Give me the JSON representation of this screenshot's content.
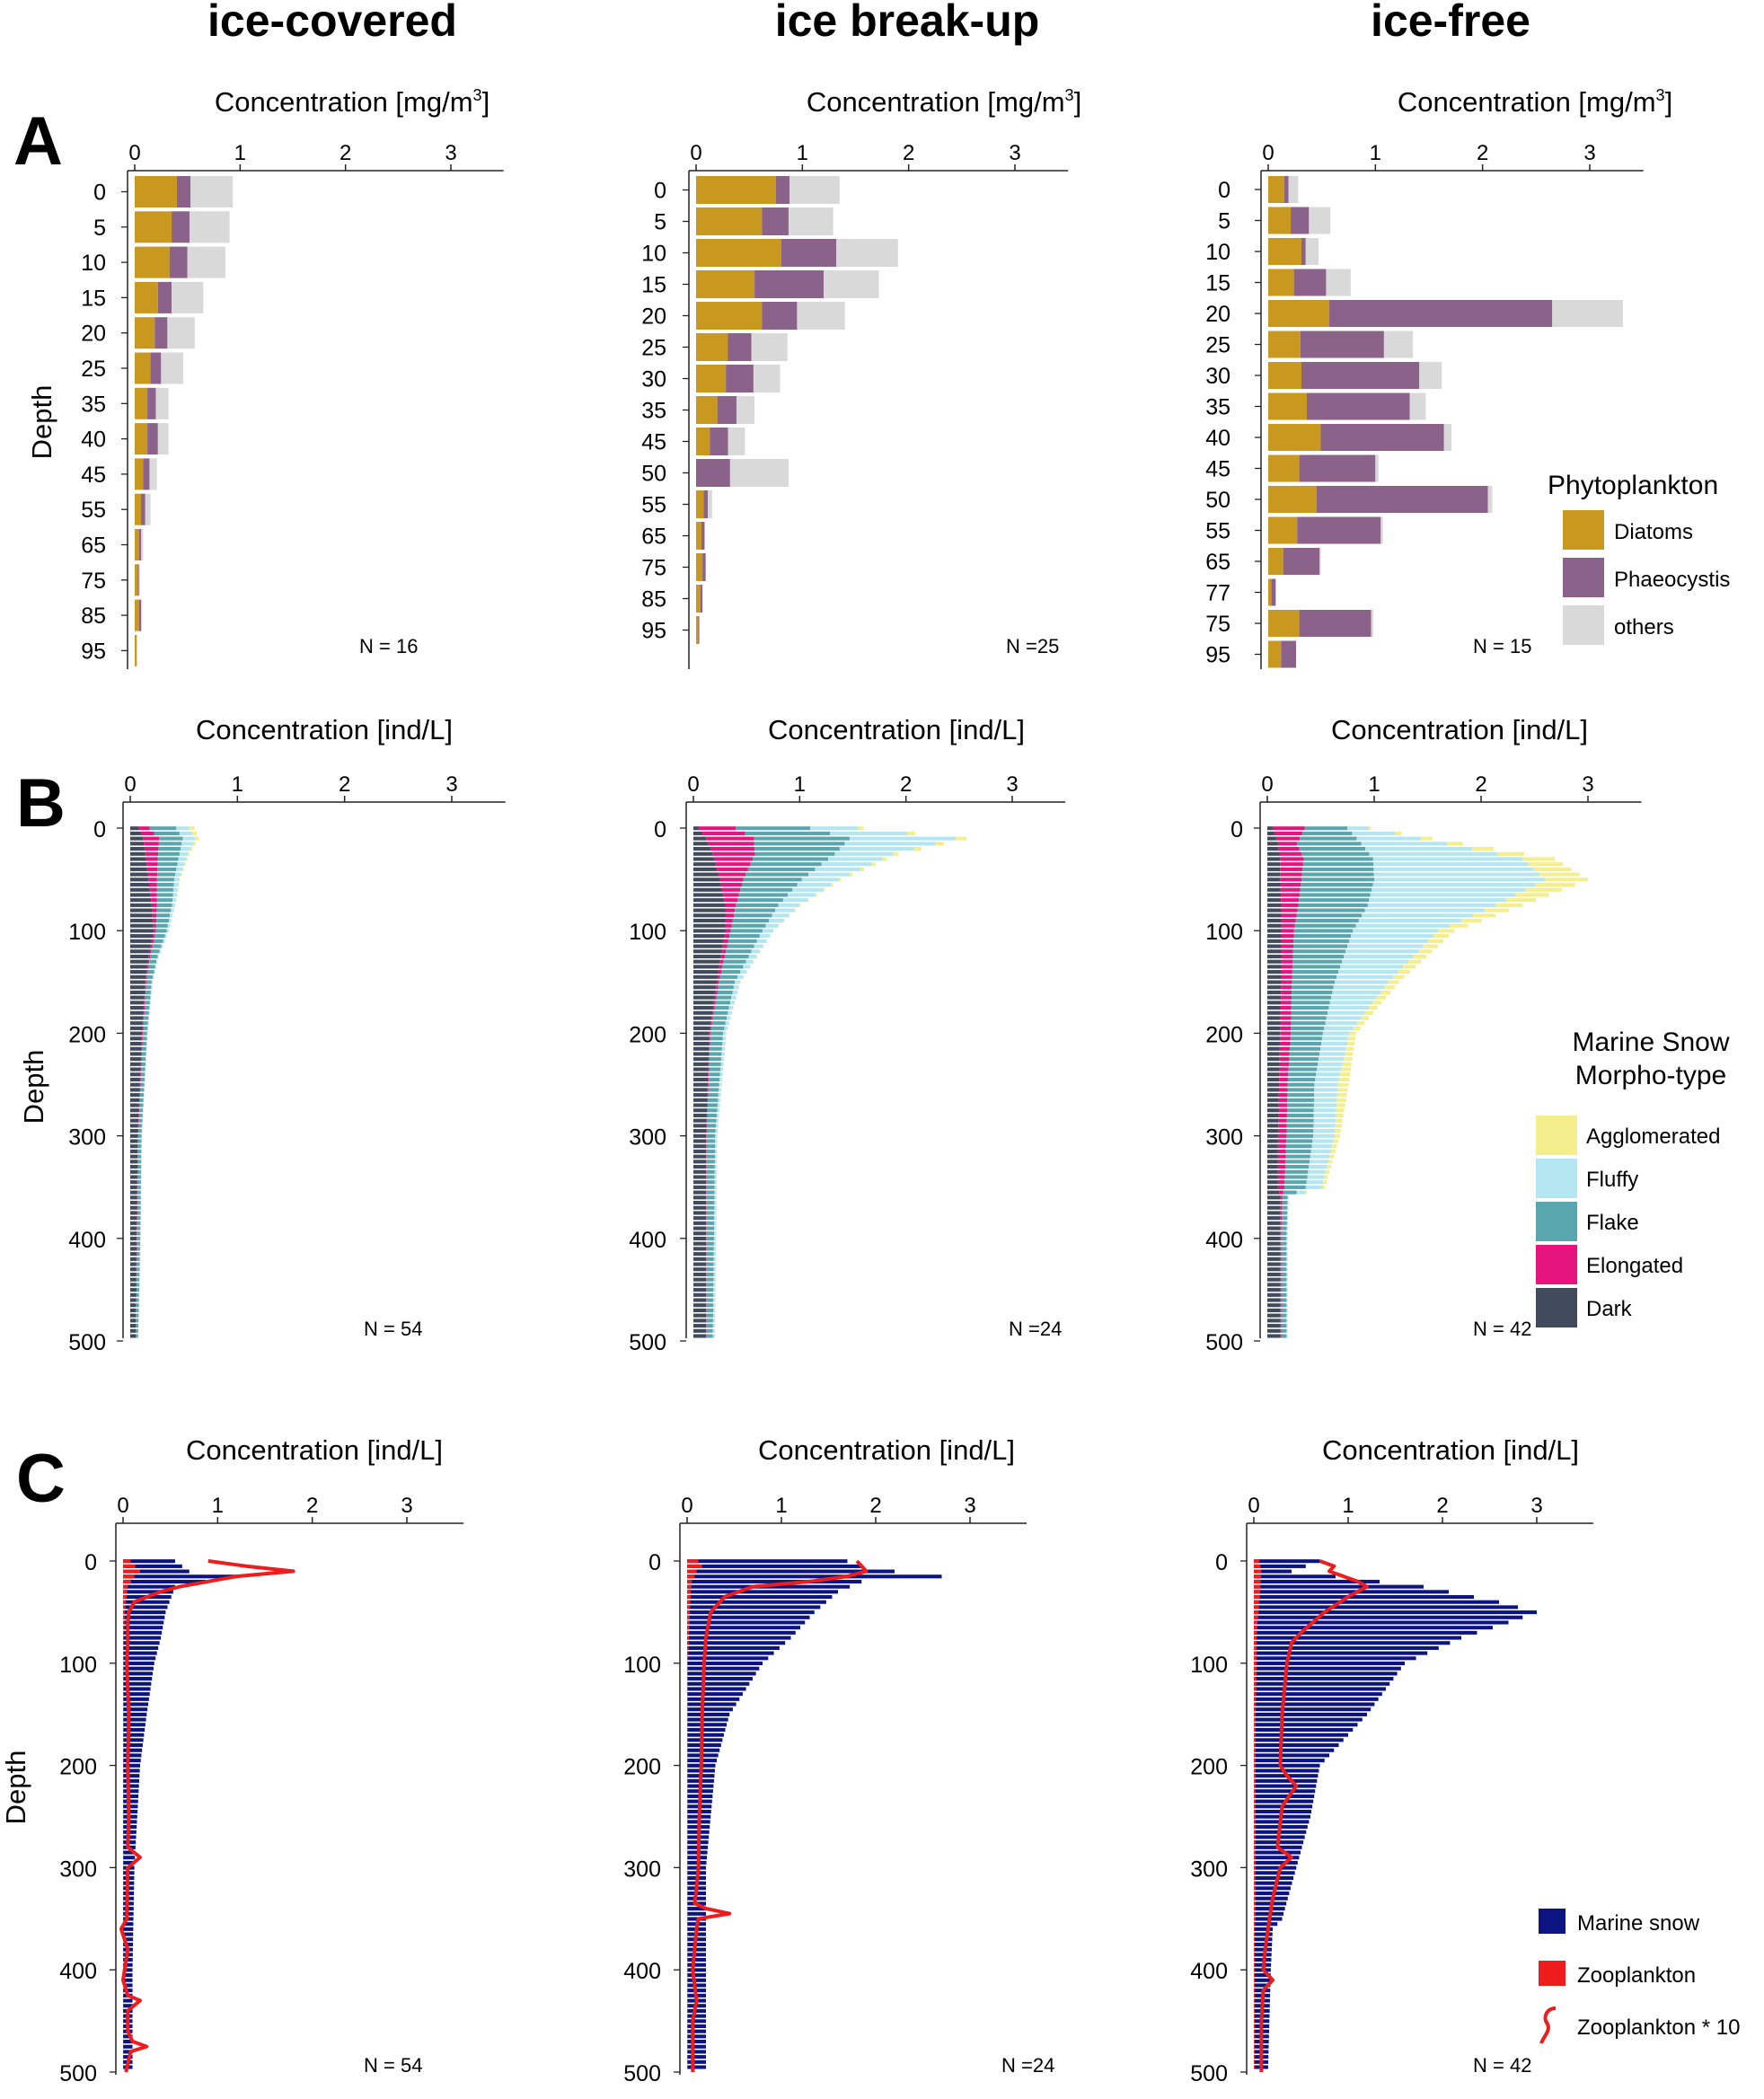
{
  "titles": {
    "col1": "ice-covered",
    "col2": "ice break-up",
    "col3": "ice-free",
    "rowA": "A",
    "rowB": "B",
    "rowC": "C",
    "depth": "Depth",
    "concA": "Concentration [mg/m",
    "concA_sup": "3",
    "concA_end": "]",
    "concBC": "Concentration [ind/L]"
  },
  "legends": {
    "phyto": {
      "title": "Phytoplankton",
      "items": [
        {
          "label": "Diatoms",
          "color": "#C9981F"
        },
        {
          "label": "Phaeocystis",
          "color": "#8B6289"
        },
        {
          "label": "others",
          "color": "#D9D9D9"
        }
      ]
    },
    "snow": {
      "title1": "Marine Snow",
      "title2": "Morpho-type",
      "items": [
        {
          "label": "Agglomerated",
          "color": "#F4EE8C"
        },
        {
          "label": "Fluffy",
          "color": "#B3E6F0"
        },
        {
          "label": "Flake",
          "color": "#5AA6AE"
        },
        {
          "label": "Elongated",
          "color": "#E6147E"
        },
        {
          "label": "Dark",
          "color": "#414B5B"
        }
      ]
    },
    "zoo": {
      "items": [
        {
          "label": "Marine snow",
          "color": "#0B1480"
        },
        {
          "label": "Zooplankton",
          "color": "#EE1C1C"
        },
        {
          "label": "Zooplankton * 10",
          "color": "#EE1C1C"
        }
      ]
    }
  },
  "chart_data": [
    {
      "id": "A1",
      "type": "bar",
      "orientation": "horizontal",
      "stacked": true,
      "title": "Concentration [mg/m3]",
      "ylabel": "Depth",
      "xlim": [
        0,
        3.5
      ],
      "xticks": [
        0,
        1,
        2,
        3
      ],
      "n_label": "N = 16",
      "categories": [
        "0",
        "5",
        "10",
        "15",
        "20",
        "25",
        "35",
        "40",
        "45",
        "55",
        "65",
        "75",
        "85",
        "95"
      ],
      "series": [
        {
          "name": "Diatoms",
          "values": [
            0.4,
            0.35,
            0.33,
            0.22,
            0.19,
            0.15,
            0.12,
            0.12,
            0.08,
            0.06,
            0.04,
            0.03,
            0.04,
            0.02
          ]
        },
        {
          "name": "Phaeocystis",
          "values": [
            0.13,
            0.17,
            0.17,
            0.13,
            0.12,
            0.1,
            0.08,
            0.1,
            0.06,
            0.04,
            0.02,
            0.01,
            0.02,
            0.0
          ]
        },
        {
          "name": "others",
          "values": [
            0.4,
            0.38,
            0.36,
            0.3,
            0.26,
            0.21,
            0.12,
            0.1,
            0.07,
            0.05,
            0.02,
            0.01,
            0.01,
            0.0
          ]
        }
      ]
    },
    {
      "id": "A2",
      "type": "bar",
      "orientation": "horizontal",
      "stacked": true,
      "title": "Concentration [mg/m3]",
      "ylabel": "",
      "xlim": [
        0,
        3.5
      ],
      "xticks": [
        0,
        1,
        2,
        3
      ],
      "n_label": "N =25",
      "categories": [
        "0",
        "5",
        "10",
        "15",
        "20",
        "25",
        "30",
        "35",
        "45",
        "50",
        "55",
        "65",
        "75",
        "85",
        "95"
      ],
      "series": [
        {
          "name": "Diatoms",
          "values": [
            0.75,
            0.62,
            0.8,
            0.55,
            0.62,
            0.3,
            0.28,
            0.2,
            0.13,
            0.0,
            0.07,
            0.05,
            0.06,
            0.04,
            0.02
          ]
        },
        {
          "name": "Phaeocystis",
          "values": [
            0.13,
            0.25,
            0.52,
            0.65,
            0.33,
            0.22,
            0.26,
            0.18,
            0.17,
            0.32,
            0.04,
            0.03,
            0.03,
            0.02,
            0.01
          ]
        },
        {
          "name": "others",
          "values": [
            0.47,
            0.42,
            0.58,
            0.52,
            0.45,
            0.34,
            0.25,
            0.17,
            0.16,
            0.55,
            0.04,
            0.0,
            0.0,
            0.0,
            0.0
          ]
        }
      ]
    },
    {
      "id": "A3",
      "type": "bar",
      "orientation": "horizontal",
      "stacked": true,
      "title": "Concentration [mg/m3]",
      "ylabel": "",
      "xlim": [
        0,
        3.5
      ],
      "xticks": [
        0,
        1,
        2,
        3
      ],
      "n_label": "N = 15",
      "categories": [
        "0",
        "5",
        "10",
        "15",
        "20",
        "25",
        "30",
        "35",
        "40",
        "45",
        "50",
        "55",
        "65",
        "77",
        "75",
        "95"
      ],
      "series": [
        {
          "name": "Diatoms",
          "values": [
            0.15,
            0.21,
            0.31,
            0.24,
            0.57,
            0.3,
            0.31,
            0.36,
            0.49,
            0.29,
            0.45,
            0.27,
            0.14,
            0.03,
            0.29,
            0.12
          ]
        },
        {
          "name": "Phaeocystis",
          "values": [
            0.04,
            0.17,
            0.04,
            0.3,
            2.08,
            0.78,
            1.1,
            0.96,
            1.15,
            0.71,
            1.6,
            0.78,
            0.34,
            0.04,
            0.67,
            0.14
          ]
        },
        {
          "name": "others",
          "values": [
            0.09,
            0.2,
            0.12,
            0.23,
            0.66,
            0.27,
            0.21,
            0.15,
            0.07,
            0.03,
            0.04,
            0.02,
            0.01,
            0.0,
            0.02,
            0.0
          ]
        }
      ]
    },
    {
      "id": "B1",
      "type": "bar",
      "orientation": "horizontal",
      "stacked": true,
      "title": "Concentration [ind/L]",
      "ylabel": "Depth",
      "xlim": [
        0,
        3.5
      ],
      "xticks": [
        0,
        1,
        2,
        3
      ],
      "yticks": [
        0,
        100,
        200,
        300,
        400,
        500
      ],
      "ylim": [
        0,
        500
      ],
      "bin_depth": 5,
      "n_label": "N = 54",
      "profile": {
        "depths": [
          0,
          10,
          25,
          50,
          75,
          100,
          125,
          150,
          200,
          300,
          400,
          500
        ],
        "Dark": [
          0.08,
          0.12,
          0.14,
          0.17,
          0.2,
          0.22,
          0.17,
          0.14,
          0.11,
          0.07,
          0.06,
          0.05
        ],
        "Elongated": [
          0.1,
          0.15,
          0.12,
          0.08,
          0.05,
          0.02,
          0.015,
          0.01,
          0.008,
          0.005,
          0.004,
          0.003
        ],
        "Flake": [
          0.25,
          0.22,
          0.2,
          0.16,
          0.14,
          0.1,
          0.07,
          0.05,
          0.04,
          0.03,
          0.03,
          0.02
        ],
        "Fluffy": [
          0.12,
          0.12,
          0.08,
          0.05,
          0.03,
          0.02,
          0.01,
          0.01,
          0.005,
          0.004,
          0.003,
          0.003
        ],
        "Agglomerated": [
          0.05,
          0.03,
          0.01,
          0.005,
          0.003,
          0.002,
          0.002,
          0.001,
          0.001,
          0.001,
          0.001,
          0.001
        ]
      }
    },
    {
      "id": "B2",
      "type": "bar",
      "orientation": "horizontal",
      "stacked": true,
      "title": "Concentration [ind/L]",
      "ylabel": "",
      "xlim": [
        0,
        3.5
      ],
      "xticks": [
        0,
        1,
        2,
        3
      ],
      "yticks": [
        0,
        100,
        200,
        300,
        400,
        500
      ],
      "ylim": [
        0,
        500
      ],
      "bin_depth": 5,
      "n_label": "N =24",
      "profile": {
        "depths": [
          0,
          10,
          25,
          50,
          75,
          100,
          150,
          200,
          300,
          400,
          500
        ],
        "Dark": [
          0.05,
          0.12,
          0.18,
          0.25,
          0.3,
          0.3,
          0.22,
          0.15,
          0.12,
          0.12,
          0.12
        ],
        "Elongated": [
          0.35,
          0.45,
          0.4,
          0.22,
          0.1,
          0.05,
          0.02,
          0.01,
          0.005,
          0.004,
          0.003
        ],
        "Flake": [
          0.7,
          0.9,
          0.75,
          0.55,
          0.4,
          0.3,
          0.15,
          0.12,
          0.08,
          0.07,
          0.06
        ],
        "Fluffy": [
          0.45,
          1.0,
          0.55,
          0.35,
          0.2,
          0.1,
          0.05,
          0.03,
          0.02,
          0.02,
          0.02
        ],
        "Agglomerated": [
          0.05,
          0.1,
          0.05,
          0.02,
          0.01,
          0.005,
          0.003,
          0.002,
          0.001,
          0.001,
          0.001
        ]
      }
    },
    {
      "id": "B3",
      "type": "bar",
      "orientation": "horizontal",
      "stacked": true,
      "title": "Concentration [ind/L]",
      "ylabel": "",
      "xlim": [
        0,
        3.5
      ],
      "xticks": [
        0,
        1,
        2,
        3
      ],
      "yticks": [
        0,
        100,
        200,
        300,
        400,
        500
      ],
      "ylim": [
        0,
        500
      ],
      "bin_depth": 5,
      "n_label": "N = 42",
      "profile": {
        "depths": [
          0,
          15,
          30,
          50,
          75,
          100,
          150,
          200,
          250,
          300,
          350,
          360,
          400,
          500
        ],
        "Dark": [
          0.05,
          0.1,
          0.12,
          0.12,
          0.13,
          0.13,
          0.13,
          0.12,
          0.11,
          0.1,
          0.1,
          0.12,
          0.12,
          0.12
        ],
        "Elongated": [
          0.3,
          0.18,
          0.22,
          0.2,
          0.16,
          0.12,
          0.1,
          0.1,
          0.08,
          0.08,
          0.06,
          0.02,
          0.01,
          0.01
        ],
        "Flake": [
          0.4,
          0.6,
          0.65,
          0.68,
          0.65,
          0.55,
          0.4,
          0.3,
          0.25,
          0.25,
          0.2,
          0.05,
          0.05,
          0.05
        ],
        "Fluffy": [
          0.2,
          0.8,
          1.4,
          1.6,
          1.2,
          0.8,
          0.5,
          0.25,
          0.22,
          0.2,
          0.15,
          0.01,
          0.01,
          0.01
        ],
        "Agglomerated": [
          0.02,
          0.15,
          0.3,
          0.4,
          0.25,
          0.15,
          0.1,
          0.06,
          0.1,
          0.05,
          0.03,
          0.0,
          0.0,
          0.0
        ]
      }
    },
    {
      "id": "C1",
      "type": "bar",
      "orientation": "horizontal",
      "title": "Concentration [ind/L]",
      "ylabel": "Depth",
      "xlim": [
        0,
        3.6
      ],
      "xticks": [
        0,
        1,
        2,
        3
      ],
      "yticks": [
        0,
        100,
        200,
        300,
        400,
        500
      ],
      "ylim": [
        0,
        500
      ],
      "bin_depth": 5,
      "n_label": "N = 54",
      "profile": {
        "depths": [
          0,
          10,
          15,
          25,
          50,
          75,
          100,
          150,
          200,
          300,
          400,
          500
        ],
        "Marine snow": [
          0.55,
          0.7,
          1.2,
          0.55,
          0.45,
          0.4,
          0.33,
          0.25,
          0.18,
          0.12,
          0.1,
          0.1
        ],
        "Zooplankton": [
          0.08,
          0.18,
          0.12,
          0.05,
          0.02,
          0.01,
          0.01,
          0.008,
          0.006,
          0.005,
          0.004,
          0.004
        ]
      },
      "zoo_line_x10": {
        "depths": [
          0,
          5,
          10,
          15,
          20,
          25,
          30,
          40,
          50,
          60,
          80,
          100,
          150,
          200,
          250,
          280,
          290,
          300,
          350,
          360,
          380,
          410,
          425,
          430,
          440,
          460,
          470,
          475,
          480,
          500
        ],
        "values": [
          0.9,
          1.3,
          1.8,
          1.2,
          0.9,
          0.6,
          0.4,
          0.12,
          0.06,
          0.05,
          0.05,
          0.04,
          0.06,
          0.05,
          0.06,
          0.05,
          0.18,
          0.05,
          0.04,
          -0.02,
          0.05,
          0.0,
          0.05,
          0.18,
          0.05,
          0.05,
          0.1,
          0.25,
          0.08,
          0.03
        ]
      }
    },
    {
      "id": "C2",
      "type": "bar",
      "orientation": "horizontal",
      "title": "Concentration [ind/L]",
      "ylabel": "",
      "xlim": [
        0,
        3.6
      ],
      "xticks": [
        0,
        1,
        2,
        3
      ],
      "yticks": [
        0,
        100,
        200,
        300,
        400,
        500
      ],
      "ylim": [
        0,
        500
      ],
      "bin_depth": 5,
      "n_label": "N =24",
      "profile": {
        "depths": [
          0,
          5,
          10,
          15,
          20,
          30,
          50,
          75,
          100,
          150,
          200,
          300,
          400,
          500
        ],
        "Marine snow": [
          1.7,
          1.85,
          2.2,
          2.7,
          1.85,
          1.6,
          1.35,
          1.1,
          0.8,
          0.45,
          0.3,
          0.2,
          0.2,
          0.2
        ],
        "Zooplankton": [
          0.12,
          0.16,
          0.1,
          0.08,
          0.05,
          0.04,
          0.03,
          0.02,
          0.01,
          0.01,
          0.01,
          0.01,
          0.01,
          0.01
        ]
      },
      "zoo_line_x10": {
        "depths": [
          0,
          10,
          15,
          20,
          25,
          35,
          50,
          75,
          100,
          150,
          200,
          250,
          300,
          320,
          335,
          340,
          345,
          350,
          360,
          400,
          430,
          450,
          500
        ],
        "values": [
          1.8,
          1.9,
          1.7,
          1.3,
          0.7,
          0.4,
          0.25,
          0.2,
          0.18,
          0.16,
          0.15,
          0.13,
          0.12,
          0.1,
          0.08,
          0.2,
          0.45,
          0.12,
          0.1,
          0.06,
          0.1,
          0.06,
          0.06
        ]
      }
    },
    {
      "id": "C3",
      "type": "bar",
      "orientation": "horizontal",
      "title": "Concentration [ind/L]",
      "ylabel": "",
      "xlim": [
        0,
        3.6
      ],
      "xticks": [
        0,
        1,
        2,
        3
      ],
      "yticks": [
        0,
        100,
        200,
        300,
        400,
        500
      ],
      "ylim": [
        0,
        500
      ],
      "bin_depth": 5,
      "n_label": "N = 42",
      "profile": {
        "depths": [
          0,
          10,
          25,
          40,
          50,
          60,
          75,
          100,
          150,
          200,
          250,
          300,
          350,
          360,
          400,
          500
        ],
        "Marine snow": [
          0.7,
          0.4,
          1.8,
          2.6,
          3.0,
          2.7,
          2.2,
          1.6,
          1.2,
          0.7,
          0.6,
          0.45,
          0.3,
          0.2,
          0.18,
          0.15
        ],
        "Zooplankton": [
          0.06,
          0.08,
          0.07,
          0.06,
          0.05,
          0.04,
          0.03,
          0.03,
          0.02,
          0.02,
          0.02,
          0.02,
          0.02,
          0.01,
          0.01,
          0.01
        ]
      },
      "zoo_line_x10": {
        "depths": [
          0,
          5,
          10,
          20,
          25,
          35,
          50,
          70,
          80,
          100,
          150,
          200,
          210,
          220,
          240,
          280,
          290,
          300,
          330,
          360,
          380,
          400,
          410,
          420,
          450,
          500
        ],
        "values": [
          0.7,
          0.85,
          0.8,
          1.1,
          1.2,
          1.0,
          0.75,
          0.5,
          0.4,
          0.35,
          0.3,
          0.28,
          0.35,
          0.45,
          0.3,
          0.25,
          0.4,
          0.28,
          0.2,
          0.15,
          0.12,
          0.1,
          0.2,
          0.1,
          0.08,
          0.08
        ]
      }
    }
  ]
}
